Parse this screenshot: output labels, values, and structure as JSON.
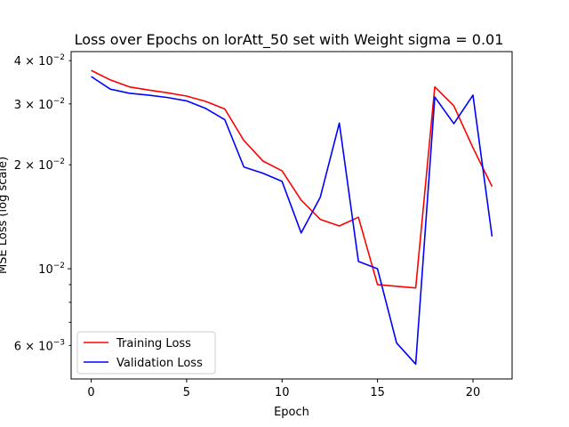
{
  "chart_data": {
    "type": "line",
    "title": "Loss over Epochs on lorAtt_50 set with Weight sigma = 0.01",
    "xlabel": "Epoch",
    "ylabel": "MSE Loss (log scale)",
    "yscale": "log",
    "xlim": [
      -1.05,
      22.05
    ],
    "ylim": [
      0.0048,
      0.0425
    ],
    "xticks": [
      0,
      5,
      10,
      15,
      20
    ],
    "xtick_labels": [
      "0",
      "5",
      "10",
      "15",
      "20"
    ],
    "yticks_major": [
      {
        "value": 0.01,
        "label_base": "10",
        "label_exp": "−2"
      }
    ],
    "yticks_minor": [
      {
        "value": 0.006,
        "label_mant": "6",
        "label_base": "10",
        "label_exp": "−3"
      },
      {
        "value": 0.02,
        "label_mant": "2",
        "label_base": "10",
        "label_exp": "−2"
      },
      {
        "value": 0.03,
        "label_mant": "3",
        "label_base": "10",
        "label_exp": "−2"
      },
      {
        "value": 0.04,
        "label_mant": "4",
        "label_base": "10",
        "label_exp": "−2"
      }
    ],
    "yticks_minor_unlabeled": [
      0.007,
      0.008,
      0.009
    ],
    "legend_position": "lower-left",
    "grid": false,
    "x": [
      0,
      1,
      2,
      3,
      4,
      5,
      6,
      7,
      8,
      9,
      10,
      11,
      12,
      13,
      14,
      15,
      16,
      17,
      18,
      19,
      20,
      21
    ],
    "series": [
      {
        "name": "Training Loss",
        "color": "#ff0000",
        "values": [
          0.0375,
          0.0352,
          0.0336,
          0.0329,
          0.0323,
          0.0316,
          0.0305,
          0.029,
          0.0235,
          0.0205,
          0.0192,
          0.0158,
          0.0139,
          0.0133,
          0.0141,
          0.009,
          0.0089,
          0.0088,
          0.0336,
          0.0296,
          0.0224,
          0.0173
        ]
      },
      {
        "name": "Validation Loss",
        "color": "#0000ff",
        "values": [
          0.036,
          0.0331,
          0.0322,
          0.0318,
          0.0313,
          0.0306,
          0.0291,
          0.027,
          0.0197,
          0.0189,
          0.0179,
          0.0127,
          0.0161,
          0.0264,
          0.0105,
          0.01,
          0.0061,
          0.0053,
          0.0314,
          0.0263,
          0.0318,
          0.0124
        ]
      }
    ]
  }
}
